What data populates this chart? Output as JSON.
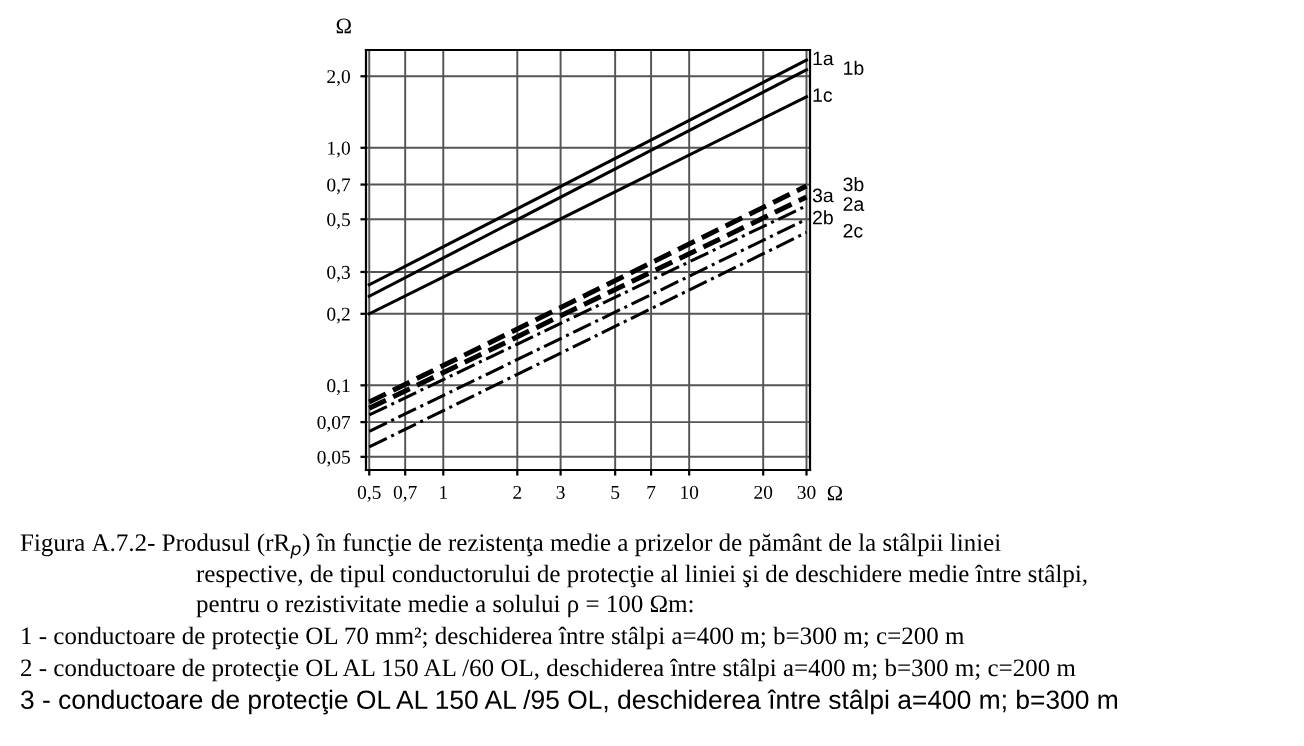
{
  "chart_data": {
    "type": "line",
    "log": "xy",
    "xlabel": "Ω",
    "ylabel": "Ω",
    "x": [
      0.5,
      30
    ],
    "xlim": [
      0.485,
      31
    ],
    "ylim": [
      0.044,
      2.58
    ],
    "xticks": [
      {
        "value": 0.5,
        "label": "0,5"
      },
      {
        "value": 0.7,
        "label": "0,7"
      },
      1,
      2,
      3,
      5,
      7,
      10,
      20,
      30
    ],
    "yticks": [
      {
        "value": 0.05,
        "label": "0,05"
      },
      {
        "value": 0.07,
        "label": "0,07"
      },
      {
        "value": 0.1,
        "label": "0,1"
      },
      {
        "value": 0.2,
        "label": "0,2"
      },
      {
        "value": 0.3,
        "label": "0,3"
      },
      {
        "value": 0.5,
        "label": "0,5"
      },
      {
        "value": 0.7,
        "label": "0,7"
      },
      {
        "value": 1.0,
        "label": "1,0"
      },
      {
        "value": 2.0,
        "label": "2,0"
      }
    ],
    "grid": true,
    "legend": false,
    "series": [
      {
        "name": "1a",
        "color": "#000000",
        "line_style": "solid",
        "values": [
          0.265,
          2.34
        ]
      },
      {
        "name": "1b",
        "color": "#000000",
        "line_style": "solid",
        "values": [
          0.237,
          2.13
        ]
      },
      {
        "name": "1c",
        "color": "#000000",
        "line_style": "solid",
        "values": [
          0.2,
          1.64
        ]
      },
      {
        "name": "3b",
        "color": "#000000",
        "line_style": "dashed",
        "values": [
          0.085,
          0.69
        ]
      },
      {
        "name": "3a",
        "color": "#000000",
        "line_style": "dashed",
        "values": [
          0.08,
          0.62
        ]
      },
      {
        "name": "2a",
        "color": "#000000",
        "line_style": "dashdot",
        "values": [
          0.075,
          0.57
        ]
      },
      {
        "name": "2b",
        "color": "#000000",
        "line_style": "dashdot",
        "values": [
          0.064,
          0.5
        ]
      },
      {
        "name": "2c",
        "color": "#000000",
        "line_style": "dashdot",
        "values": [
          0.055,
          0.44
        ]
      }
    ],
    "annotations": [
      "Figura A.7.2- Produsul (rR$_{p}$) în funcţie de rezistenţa medie a prizelor de pământ de la stâlpii liniei",
      "respective, de tipul conductorului de protecţie al liniei şi de deschidere medie între stâlpi,",
      "pentru o rezistivitate medie a solului ρ = 100 Ωm:",
      "1 - conductoare de protecţie OL 70 mm²; deschiderea între stâlpi a=400 m; b=300 m; c=200 m",
      "2 - conductoare de protecţie OL AL 150 AL /60 OL, deschiderea între stâlpi a=400 m; b=300 m; c=200 m",
      "3 - conductoare de protecţie OL AL 150 AL /95 OL, deschiderea între stâlpi a=400 m; b=300 m"
    ]
  }
}
